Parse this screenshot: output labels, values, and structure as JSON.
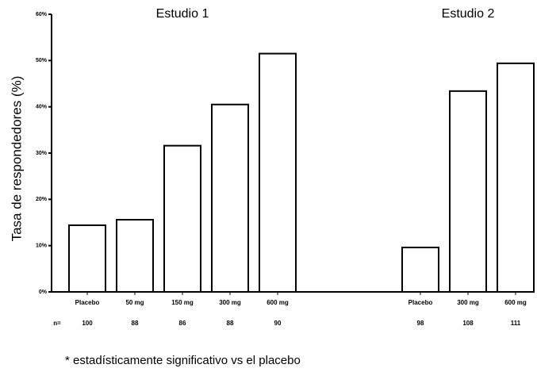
{
  "chart_data": {
    "type": "bar",
    "y_label": "Tasa de respondedores (%)",
    "ylim": [
      0,
      60
    ],
    "yticks": [
      {
        "value": 0,
        "label": "0%"
      },
      {
        "value": 10,
        "label": "10%"
      },
      {
        "value": 20,
        "label": "20%"
      },
      {
        "value": 30,
        "label": "30%"
      },
      {
        "value": 40,
        "label": "40%"
      },
      {
        "value": 50,
        "label": "50%"
      },
      {
        "value": 60,
        "label": "60%"
      }
    ],
    "color": "#ffffff",
    "n_label": "n=",
    "groups": [
      {
        "title": "Estudio 1",
        "categories": [
          "Placebo",
          "50 mg",
          "150 mg",
          "300 mg",
          "600 mg"
        ],
        "values": [
          14.4,
          15.6,
          31.6,
          40.5,
          51.5
        ],
        "n": [
          "100",
          "88",
          "86",
          "88",
          "90"
        ]
      },
      {
        "title": "Estudio 2",
        "categories": [
          "Placebo",
          "300 mg",
          "600 mg"
        ],
        "values": [
          9.6,
          43.4,
          49.4
        ],
        "n": [
          "98",
          "108",
          "111"
        ]
      }
    ],
    "footnote": "* estadísticamente significativo vs el placebo"
  }
}
